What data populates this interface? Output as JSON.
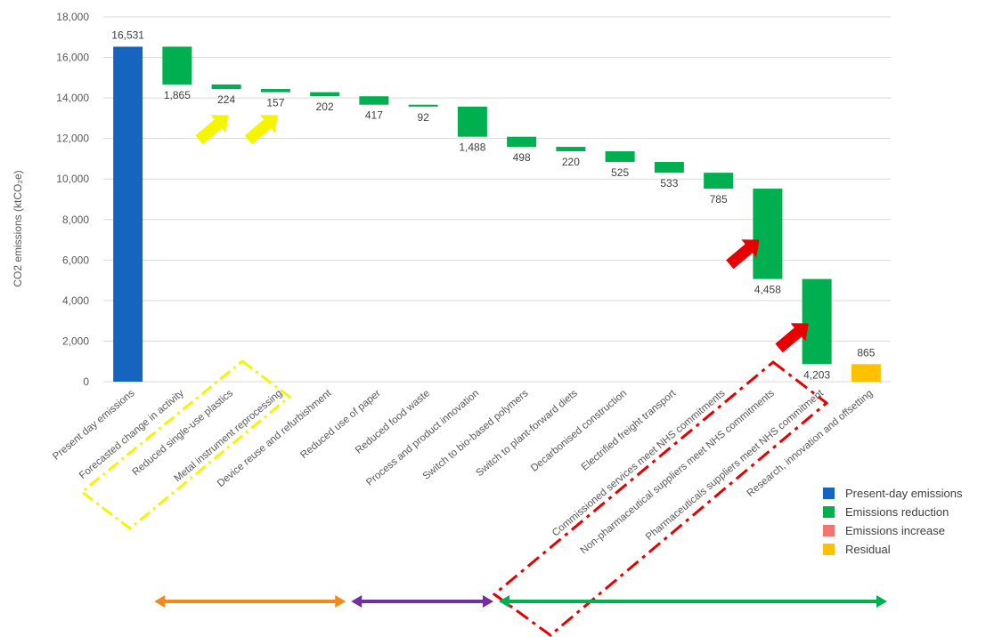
{
  "chart_data": {
    "type": "bar",
    "subtype": "waterfall",
    "title": "",
    "ylabel": "CO2 emissions (ktCO₂e)",
    "xlabel": "",
    "ylim": [
      0,
      18000
    ],
    "yticks": [
      0,
      2000,
      4000,
      6000,
      8000,
      10000,
      12000,
      14000,
      16000,
      18000
    ],
    "ytick_labels": [
      "0",
      "2,000",
      "4,000",
      "6,000",
      "8,000",
      "10,000",
      "12,000",
      "14,000",
      "16,000",
      "18,000"
    ],
    "grid": true,
    "legend_position": "bottom-right",
    "categories": [
      "Present day emissions",
      "Forecasted change in activity",
      "Reduced single-use plastics",
      "Metal instrument reprocessing",
      "Device reuse and refurbishment",
      "Reduced use of paper",
      "Reduced food waste",
      "Process and product innovation",
      "Switch to bio-based polymers",
      "Switch to plant-forward diets",
      "Decarbonised construction",
      "Electrified freight transport",
      "Commissioned services meet NHS commitments",
      "Non-pharmaceutical suppliers meet NHS commitments",
      "Pharmaceuticals suppliers meet NHS commitment",
      "Research, innovation and offsetting"
    ],
    "values": [
      16531,
      -1865,
      -224,
      -157,
      -202,
      -417,
      -92,
      -1488,
      -498,
      -220,
      -525,
      -533,
      -785,
      -4458,
      -4203,
      865
    ],
    "value_labels": [
      "16,531",
      "1,865",
      "224",
      "157",
      "202",
      "417",
      "92",
      "1,488",
      "498",
      "220",
      "525",
      "533",
      "785",
      "4,458",
      "4,203",
      "865"
    ],
    "bar_kinds": [
      "present",
      "reduction",
      "reduction",
      "reduction",
      "reduction",
      "reduction",
      "reduction",
      "reduction",
      "reduction",
      "reduction",
      "reduction",
      "reduction",
      "reduction",
      "reduction",
      "reduction",
      "residual"
    ],
    "legend": [
      {
        "key": "present",
        "label": "Present-day emissions",
        "color": "#1565C0"
      },
      {
        "key": "reduction",
        "label": "Emissions reduction",
        "color": "#00B050"
      },
      {
        "key": "increase",
        "label": "Emissions increase",
        "color": "#F07470"
      },
      {
        "key": "residual",
        "label": "Residual",
        "color": "#FFC000"
      }
    ],
    "annotations": {
      "yellow_arrows_point_to": [
        "Reduced single-use plastics",
        "Metal instrument reprocessing"
      ],
      "red_arrows_point_to": [
        "Non-pharmaceutical suppliers meet NHS commitments",
        "Pharmaceuticals suppliers meet NHS commitment"
      ],
      "yellow_dashed_box_around": [
        "Reduced single-use plastics",
        "Metal instrument reprocessing"
      ],
      "red_dashed_box_around": [
        "Commissioned services meet NHS commitments",
        "Non-pharmaceutical suppliers meet NHS commitments",
        "Pharmaceuticals suppliers meet NHS commitment"
      ],
      "group_arrows": [
        {
          "color": "#F08A1C",
          "from": "Forecasted change in activity",
          "to": "Device reuse and refurbishment"
        },
        {
          "color": "#7030A0",
          "from": "Reduced use of paper",
          "to": "Process and product innovation"
        },
        {
          "color": "#00B050",
          "from": "Switch to bio-based polymers",
          "to": "Research, innovation and offsetting"
        }
      ],
      "colors": {
        "yellow": "#F5F500",
        "red": "#E60000"
      }
    }
  }
}
